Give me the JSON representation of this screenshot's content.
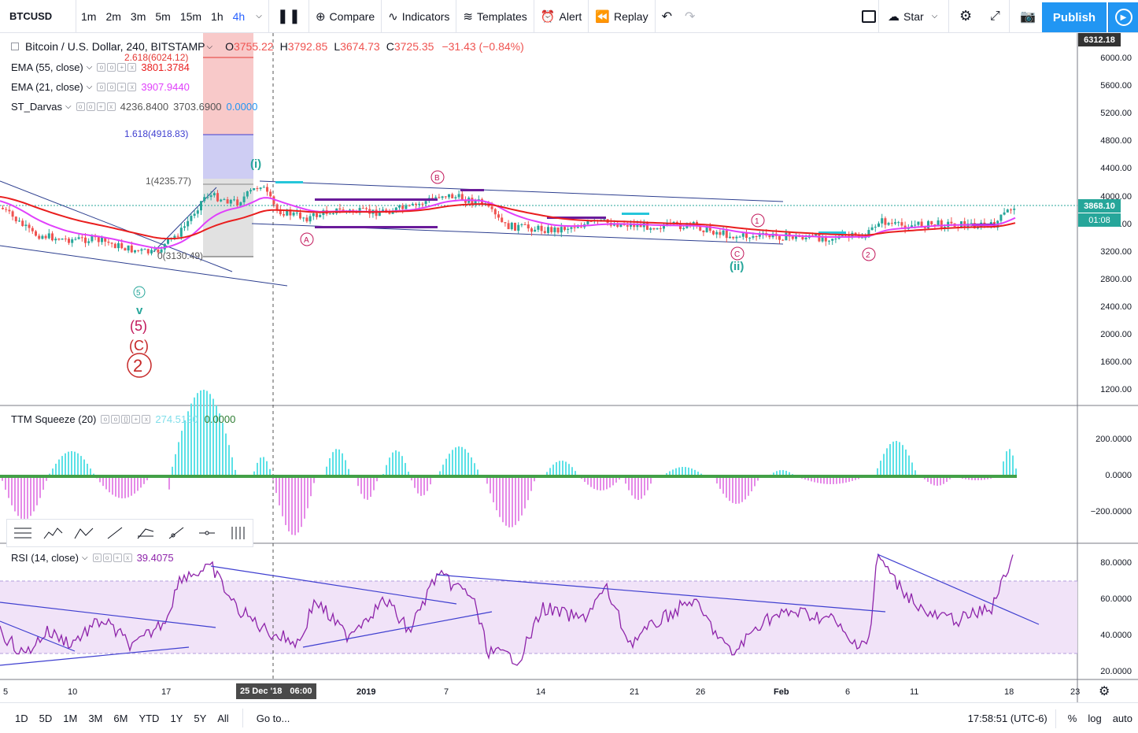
{
  "toolbar": {
    "symbol": "BTCUSD",
    "intervals": [
      "1m",
      "2m",
      "3m",
      "5m",
      "15m",
      "1h",
      "4h"
    ],
    "active_interval": "4h",
    "compare": "Compare",
    "indicators": "Indicators",
    "templates": "Templates",
    "alert": "Alert",
    "replay": "Replay",
    "star": "Star",
    "publish": "Publish"
  },
  "legend": {
    "title": "Bitcoin / U.S. Dollar, 240, BITSTAMP",
    "o_label": "O",
    "o": "3755.22",
    "h_label": "H",
    "h": "3792.85",
    "l_label": "L",
    "l": "3674.73",
    "c_label": "C",
    "c": "3725.35",
    "change": "−31.43 (−0.84%)",
    "ema55_label": "EMA (55, close)",
    "ema55_value": "3801.3784",
    "ema21_label": "EMA (21, close)",
    "ema21_value": "3907.9440",
    "darvas_label": "ST_Darvas",
    "darvas_v1": "4236.8400",
    "darvas_v2": "3703.6900",
    "darvas_v3": "0.0000",
    "ttm_label": "TTM Squeeze (20)",
    "ttm_v1": "274.5120",
    "ttm_v2": "0.0000",
    "rsi_label": "RSI (14, close)",
    "rsi_value": "39.4075"
  },
  "fib": {
    "f2618": "2.618(6024.12)",
    "f1618": "1.618(4918.83)",
    "f1": "1(4235.77)",
    "f0": "0(3130.49)"
  },
  "price_axis": [
    "6000.00",
    "5600.00",
    "5200.00",
    "4800.00",
    "4400.00",
    "4000.00",
    "3600.00",
    "3200.00",
    "2800.00",
    "2400.00",
    "2000.00",
    "1600.00",
    "1200.00"
  ],
  "price_top_tag": "6312.18",
  "price_current": "3868.10",
  "price_countdown": "01:08",
  "ttm_axis": [
    "200.0000",
    "0.0000",
    "−200.0000"
  ],
  "rsi_axis": [
    "80.0000",
    "60.0000",
    "40.0000",
    "20.0000"
  ],
  "time_axis": [
    "5",
    "10",
    "17",
    "2019",
    "7",
    "14",
    "21",
    "26",
    "Feb",
    "6",
    "11",
    "18",
    "23"
  ],
  "crosshair_date": "25 Dec '18",
  "crosshair_time": "06:00",
  "wave_labels": {
    "w_i": "(i)",
    "w_ii": "(ii)",
    "w_v": "v",
    "w_5": "(5)",
    "w_C": "(C)",
    "w_2": "2",
    "A": "A",
    "B": "B",
    "C": "C",
    "c5": "5",
    "c1": "1",
    "c2": "2"
  },
  "bottom": {
    "ranges": [
      "1D",
      "5D",
      "1M",
      "3M",
      "6M",
      "YTD",
      "1Y",
      "5Y",
      "All"
    ],
    "goto": "Go to...",
    "clock": "17:58:51 (UTC-6)",
    "percent": "%",
    "log": "log",
    "auto": "auto"
  },
  "colors": {
    "up": "#26a69a",
    "down": "#ef5350",
    "ema55": "#e91e1e",
    "ema21": "#e040fb",
    "accent": "#2196f3",
    "rsi": "#8e24aa",
    "trend": "#3f3fd0"
  }
}
